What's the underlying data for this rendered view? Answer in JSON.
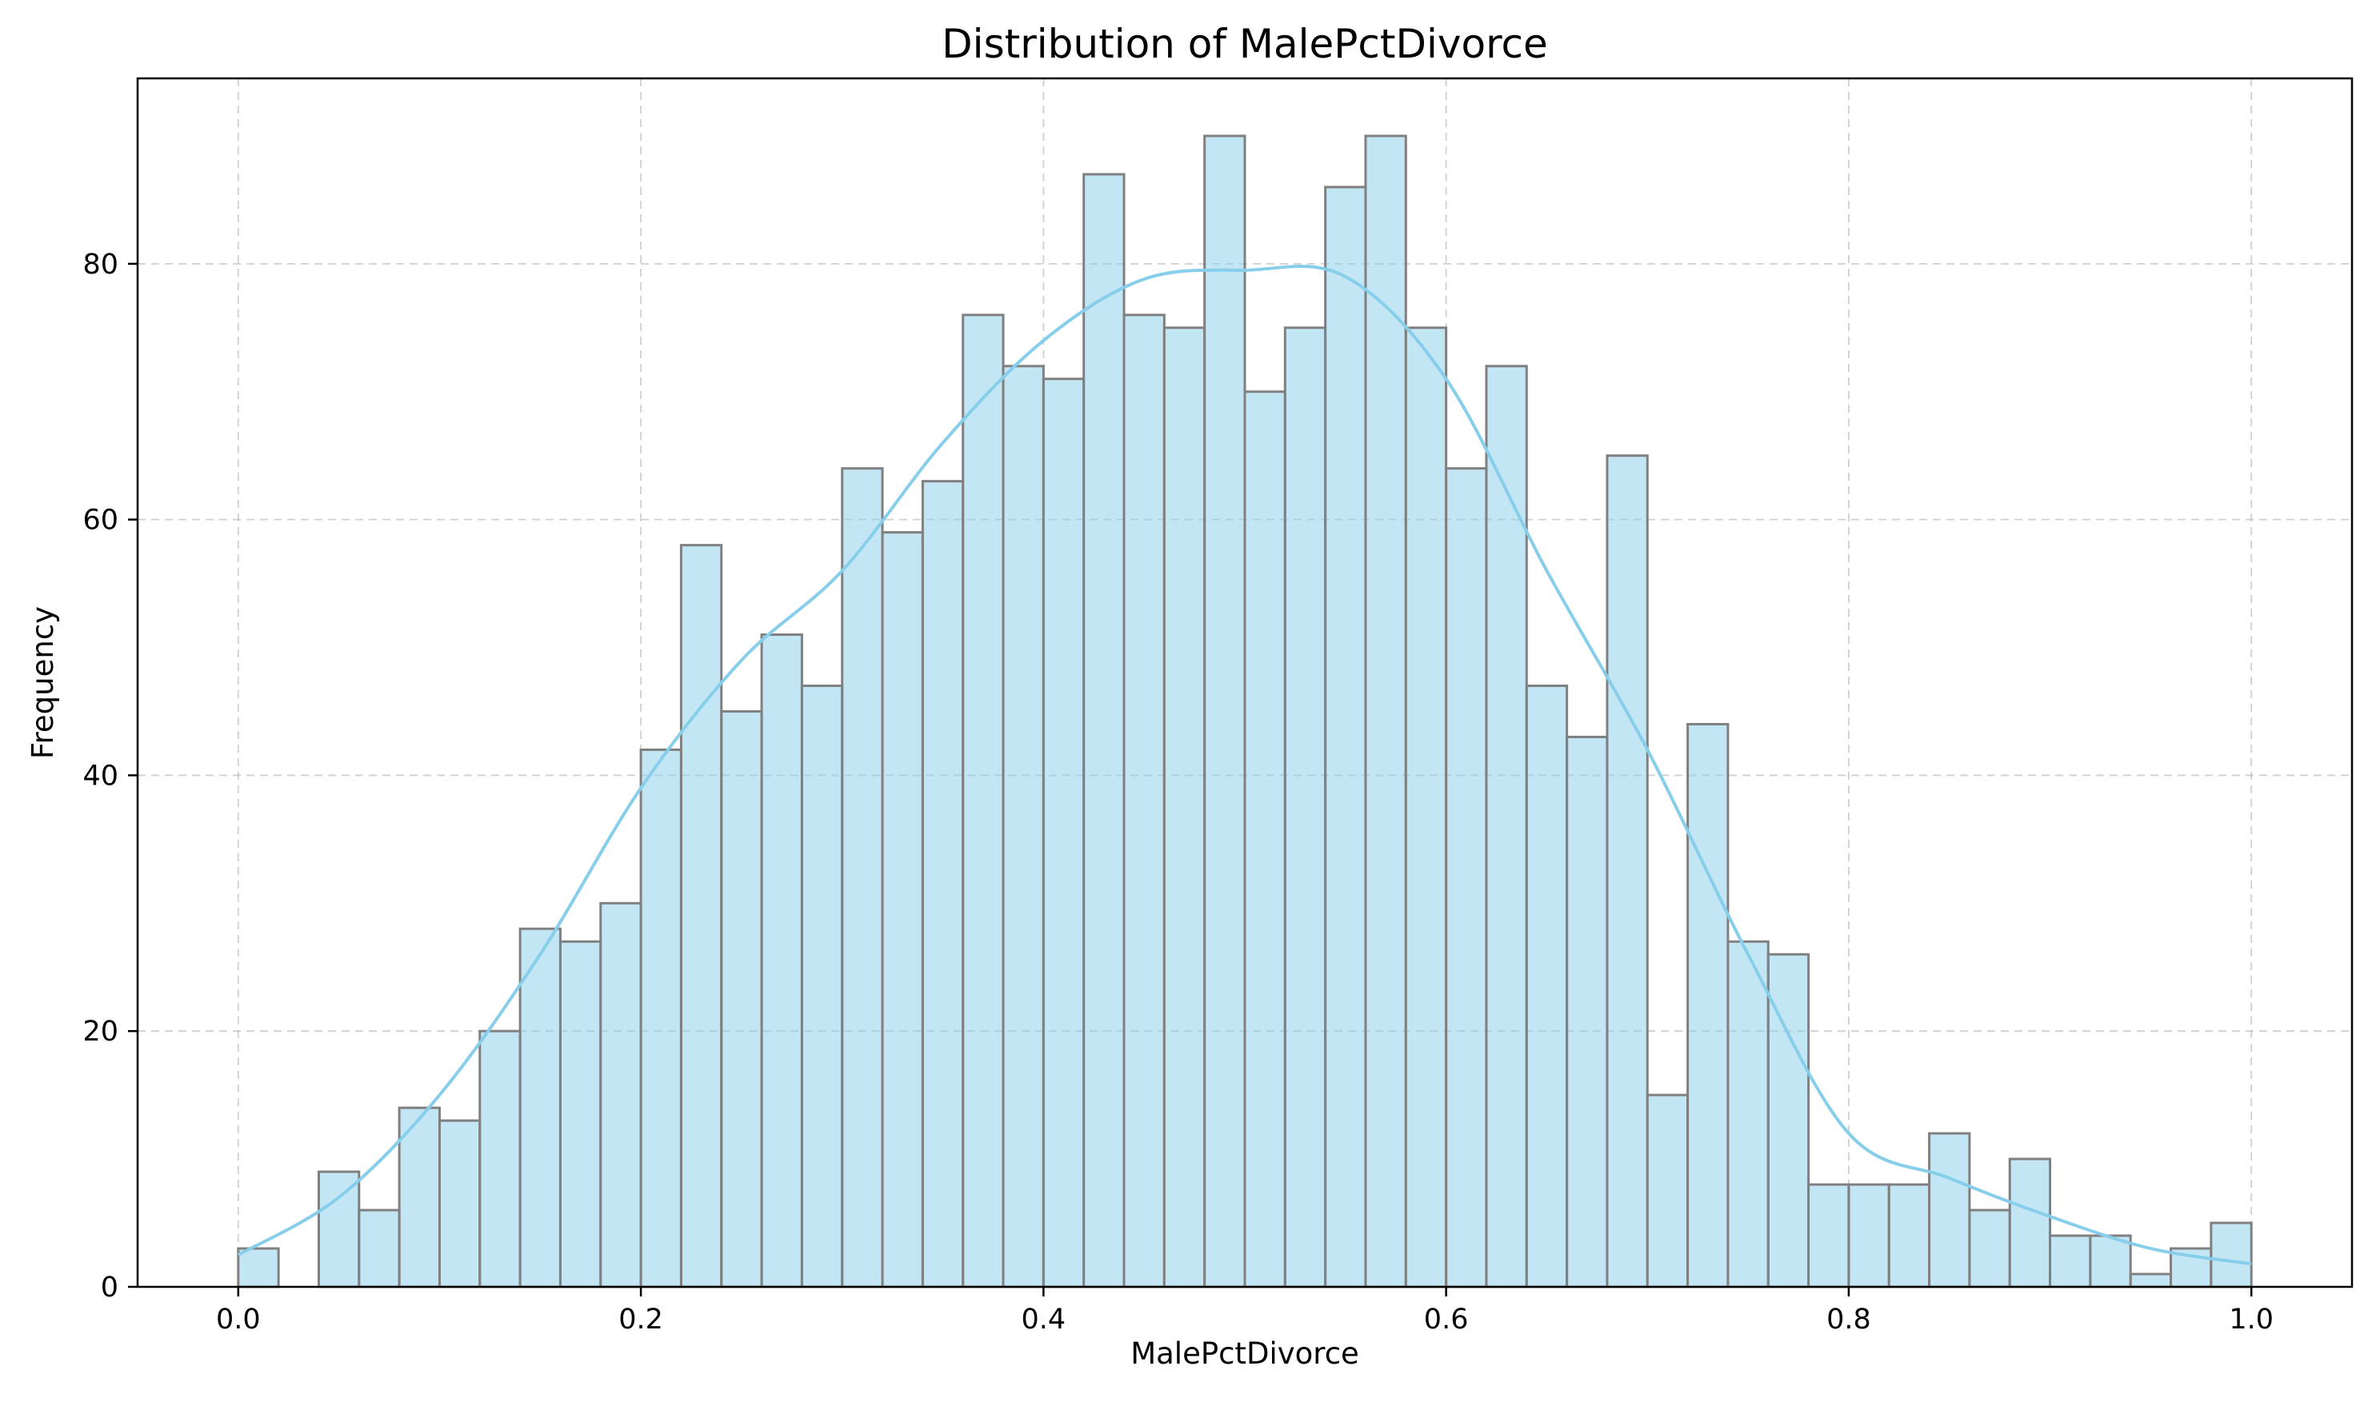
{
  "chart_data": {
    "type": "bar",
    "title": "Distribution of MalePctDivorce",
    "xlabel": "MalePctDivorce",
    "ylabel": "Frequency",
    "xlim": [
      -0.05,
      1.05
    ],
    "ylim": [
      0,
      94.5
    ],
    "xticks": [
      0.0,
      0.2,
      0.4,
      0.6,
      0.8,
      1.0
    ],
    "xtick_labels": [
      "0.0",
      "0.2",
      "0.4",
      "0.6",
      "0.8",
      "1.0"
    ],
    "yticks": [
      0,
      20,
      40,
      60,
      80
    ],
    "ytick_labels": [
      "0",
      "20",
      "40",
      "60",
      "80"
    ],
    "grid": true,
    "bin_edges": [
      0.0,
      0.02,
      0.04,
      0.06,
      0.08,
      0.1,
      0.12,
      0.14,
      0.16,
      0.18,
      0.2,
      0.22,
      0.24,
      0.26,
      0.28,
      0.3,
      0.32,
      0.34,
      0.36,
      0.38,
      0.4,
      0.42,
      0.44,
      0.46,
      0.48,
      0.5,
      0.52,
      0.54,
      0.56,
      0.58,
      0.6,
      0.62,
      0.64,
      0.66,
      0.68,
      0.7,
      0.72,
      0.74,
      0.76,
      0.78,
      0.8,
      0.82,
      0.84,
      0.86,
      0.88,
      0.9,
      0.92,
      0.94,
      0.96,
      0.98,
      1.0
    ],
    "values": [
      3,
      0,
      9,
      6,
      14,
      13,
      20,
      28,
      27,
      30,
      42,
      58,
      45,
      51,
      47,
      64,
      59,
      63,
      76,
      72,
      71,
      87,
      76,
      75,
      90,
      70,
      75,
      86,
      90,
      75,
      64,
      72,
      47,
      43,
      65,
      15,
      44,
      27,
      26,
      8,
      8,
      8,
      12,
      6,
      10,
      4,
      4,
      1,
      3,
      5
    ],
    "kde": {
      "x": [
        0.0,
        0.05,
        0.1,
        0.15,
        0.2,
        0.25,
        0.3,
        0.35,
        0.4,
        0.45,
        0.5,
        0.55,
        0.6,
        0.65,
        0.7,
        0.75,
        0.8,
        0.85,
        0.9,
        0.95,
        1.0
      ],
      "y": [
        2.5,
        7,
        15,
        26,
        39,
        49,
        56,
        66,
        74,
        78.8,
        79.5,
        79,
        71,
        56,
        42,
        26,
        12,
        8.5,
        5.5,
        3,
        1.8
      ]
    },
    "colors": {
      "bar_fill": "#87ceeb",
      "bar_edge": "#808080",
      "kde_line": "#87ceeb",
      "grid": "#b0b0b0"
    }
  }
}
